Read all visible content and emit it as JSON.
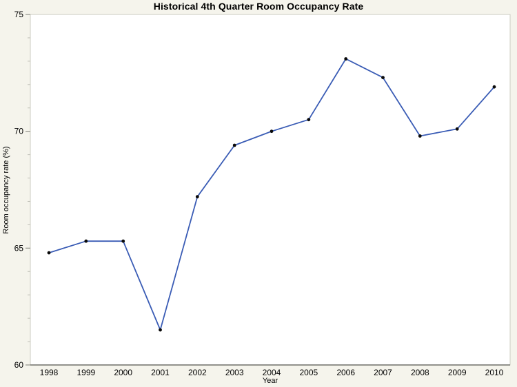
{
  "figure": {
    "background_color": "#f5f4ec",
    "plot_background_color": "#ffffff",
    "plot_border_color": "#ccccc2",
    "axis_line_color": "#6f6f68",
    "major_tick_color": "#8f8f88",
    "minor_tick_color": "#bfbfb6",
    "text_color": "#000000"
  },
  "chart_data": {
    "type": "line",
    "title": "Historical 4th Quarter Room Occupancy Rate",
    "xlabel": "Year",
    "ylabel": "Room occupancy rate (%)",
    "x": [
      1998,
      1999,
      2000,
      2001,
      2002,
      2003,
      2004,
      2005,
      2006,
      2007,
      2008,
      2009,
      2010
    ],
    "y": [
      64.8,
      65.3,
      65.3,
      61.5,
      67.2,
      69.4,
      70.0,
      70.5,
      73.1,
      72.3,
      69.8,
      70.1,
      71.9
    ],
    "series_name": "Room occupancy rate",
    "ylim": [
      60,
      75
    ],
    "y_major_ticks": [
      60,
      65,
      70,
      75
    ],
    "y_minor_tick_interval": 1,
    "grid": false,
    "legend": "none",
    "line_color": "#3a5cb5",
    "marker_color": "#0a0a0a",
    "marker_shape": "filled-circle"
  }
}
